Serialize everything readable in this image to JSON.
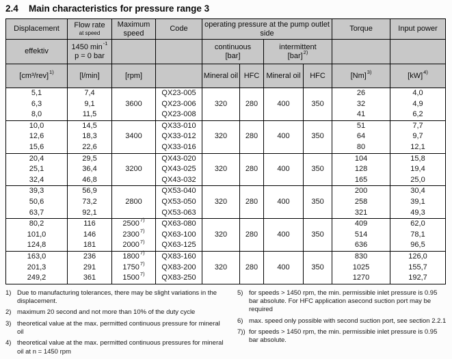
{
  "title": {
    "number": "2.4",
    "text": "Main characteristics for pressure range 3"
  },
  "colors": {
    "header_bg": "#c8c8c8",
    "border": "#000000",
    "page_bg": "#fcfcfc"
  },
  "table": {
    "header": {
      "displacement": "Displacement",
      "flow_rate_line1": "Flow rate",
      "flow_rate_line2": "at speed",
      "max_speed": "Maximum speed",
      "code": "Code",
      "op_pressure": "operating pressure at the pump outlet side",
      "torque": "Torque",
      "input_power": "Input power",
      "effektiv": "effektiv",
      "flow_cond_base": "1450 min",
      "flow_cond_sup": "-1",
      "flow_cond_line2": "p = 0 bar",
      "continuous_line1": "continuous",
      "continuous_line2": "[bar]",
      "intermittent_line1": "intermittent",
      "intermittent_line2": "[bar]",
      "intermittent_note": "2)",
      "disp_unit": "[cm³/rev]",
      "disp_note": "1)",
      "flow_unit": "[l/min]",
      "speed_unit": "[rpm]",
      "mineral_oil": "Mineral oil",
      "hfc": "HFC",
      "torque_unit": "[Nm]",
      "torque_note": "3)",
      "power_unit": "[kW]",
      "power_note": "4)"
    },
    "groups": [
      {
        "speed": "3600",
        "speed_note": "",
        "pressures": {
          "cont_mineral": "320",
          "cont_hfc": "280",
          "int_mineral": "400",
          "int_hfc": "350"
        },
        "rows": [
          {
            "disp": "5,1",
            "flow": "7,4",
            "speed": "",
            "speed_note": "",
            "code": "QX23-005",
            "torque": "26",
            "power": "4,0"
          },
          {
            "disp": "6,3",
            "flow": "9,1",
            "speed": "",
            "speed_note": "",
            "code": "QX23-006",
            "torque": "32",
            "power": "4,9"
          },
          {
            "disp": "8,0",
            "flow": "11,5",
            "speed": "",
            "speed_note": "",
            "code": "QX23-008",
            "torque": "41",
            "power": "6,2"
          }
        ]
      },
      {
        "speed": "3400",
        "speed_note": "",
        "pressures": {
          "cont_mineral": "320",
          "cont_hfc": "280",
          "int_mineral": "400",
          "int_hfc": "350"
        },
        "rows": [
          {
            "disp": "10,0",
            "flow": "14,5",
            "speed": "",
            "speed_note": "",
            "code": "QX33-010",
            "torque": "51",
            "power": "7,7"
          },
          {
            "disp": "12,6",
            "flow": "18,3",
            "speed": "",
            "speed_note": "",
            "code": "QX33-012",
            "torque": "64",
            "power": "9,7"
          },
          {
            "disp": "15,6",
            "flow": "22,6",
            "speed": "",
            "speed_note": "",
            "code": "QX33-016",
            "torque": "80",
            "power": "12,1"
          }
        ]
      },
      {
        "speed": "3200",
        "speed_note": "",
        "pressures": {
          "cont_mineral": "320",
          "cont_hfc": "280",
          "int_mineral": "400",
          "int_hfc": "350"
        },
        "rows": [
          {
            "disp": "20,4",
            "flow": "29,5",
            "speed": "",
            "speed_note": "",
            "code": "QX43-020",
            "torque": "104",
            "power": "15,8"
          },
          {
            "disp": "25,1",
            "flow": "36,4",
            "speed": "",
            "speed_note": "",
            "code": "QX43-025",
            "torque": "128",
            "power": "19,4"
          },
          {
            "disp": "32,4",
            "flow": "46,8",
            "speed": "",
            "speed_note": "",
            "code": "QX43-032",
            "torque": "165",
            "power": "25,0"
          }
        ]
      },
      {
        "speed": "2800",
        "speed_note": "",
        "pressures": {
          "cont_mineral": "320",
          "cont_hfc": "280",
          "int_mineral": "400",
          "int_hfc": "350"
        },
        "rows": [
          {
            "disp": "39,3",
            "flow": "56,9",
            "speed": "",
            "speed_note": "",
            "code": "QX53-040",
            "torque": "200",
            "power": "30,4"
          },
          {
            "disp": "50,6",
            "flow": "73,2",
            "speed": "",
            "speed_note": "",
            "code": "QX53-050",
            "torque": "258",
            "power": "39,1"
          },
          {
            "disp": "63,7",
            "flow": "92,1",
            "speed": "",
            "speed_note": "",
            "code": "QX53-063",
            "torque": "321",
            "power": "49,3"
          }
        ]
      },
      {
        "speed": "",
        "speed_note": "",
        "pressures": {
          "cont_mineral": "320",
          "cont_hfc": "280",
          "int_mineral": "400",
          "int_hfc": "350"
        },
        "rows": [
          {
            "disp": "80,2",
            "flow": "116",
            "speed": "2500",
            "speed_note": "7)",
            "code": "QX63-080",
            "torque": "409",
            "power": "62,0"
          },
          {
            "disp": "101,0",
            "flow": "146",
            "speed": "2300",
            "speed_note": "7)",
            "code": "QX63-100",
            "torque": "514",
            "power": "78,1"
          },
          {
            "disp": "124,8",
            "flow": "181",
            "speed": "2000",
            "speed_note": "7)",
            "code": "QX63-125",
            "torque": "636",
            "power": "96,5"
          }
        ]
      },
      {
        "speed": "",
        "speed_note": "",
        "pressures": {
          "cont_mineral": "320",
          "cont_hfc": "280",
          "int_mineral": "400",
          "int_hfc": "350"
        },
        "rows": [
          {
            "disp": "163,0",
            "flow": "236",
            "speed": "1800",
            "speed_note": "7)",
            "code": "QX83-160",
            "torque": "830",
            "power": "126,0"
          },
          {
            "disp": "201,3",
            "flow": "291",
            "speed": "1750",
            "speed_note": "7)",
            "code": "QX83-200",
            "torque": "1025",
            "power": "155,7"
          },
          {
            "disp": "249,2",
            "flow": "361",
            "speed": "1500",
            "speed_note": "7)",
            "code": "QX83-250",
            "torque": "1270",
            "power": "192,7"
          }
        ]
      }
    ]
  },
  "footnotes": {
    "left": [
      {
        "marker": "1)",
        "text": "Due to manufacturing tolerances, there may be slight variations in the displacement."
      },
      {
        "marker": "2)",
        "text": "maximum  20 second and not more than 10% of the duty cycle"
      },
      {
        "marker": "3)",
        "text": "theoretical value at the max. permitted continuous pressure for mineral oil"
      },
      {
        "marker": "4)",
        "text": "theoretical value at the max. permitted continuous pressures for mineral oil at n = 1450 rpm"
      }
    ],
    "right": [
      {
        "marker": "5)",
        "text": "for speeds  > 1450 rpm, the min. permissible inlet pressure is 0.95 bar absolute. For HFC application asecond suction port may be required"
      },
      {
        "marker": "6)",
        "text": "max. speed only possible with second suction port, see section 2.2.1"
      },
      {
        "marker": "7))",
        "text": "for speeds  > 1450 rpm, the min. permissible inlet pressure is 0.95 bar absolute."
      }
    ]
  }
}
